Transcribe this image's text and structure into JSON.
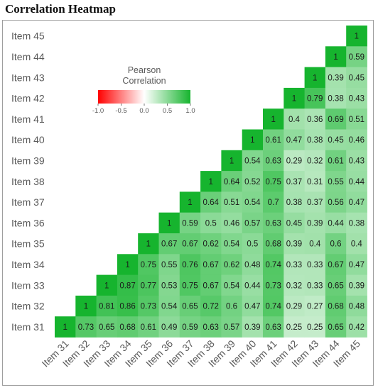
{
  "title": "Correlation Heatmap",
  "chart_data": {
    "type": "heatmap",
    "title": "Correlation Heatmap",
    "items": [
      "Item 31",
      "Item 32",
      "Item 33",
      "Item 34",
      "Item 35",
      "Item 36",
      "Item 37",
      "Item 38",
      "Item 39",
      "Item 40",
      "Item 41",
      "Item 42",
      "Item 43",
      "Item 44",
      "Item 45"
    ],
    "rows": [
      {
        "item": "Item 45",
        "values": [
          1
        ]
      },
      {
        "item": "Item 44",
        "values": [
          1,
          0.59
        ]
      },
      {
        "item": "Item 43",
        "values": [
          1,
          0.39,
          0.45
        ]
      },
      {
        "item": "Item 42",
        "values": [
          1,
          0.79,
          0.38,
          0.43
        ]
      },
      {
        "item": "Item 41",
        "values": [
          1,
          0.4,
          0.36,
          0.69,
          0.51
        ]
      },
      {
        "item": "Item 40",
        "values": [
          1,
          0.61,
          0.47,
          0.38,
          0.45,
          0.46
        ]
      },
      {
        "item": "Item 39",
        "values": [
          1,
          0.54,
          0.63,
          0.29,
          0.32,
          0.61,
          0.43
        ]
      },
      {
        "item": "Item 38",
        "values": [
          1,
          0.64,
          0.52,
          0.75,
          0.37,
          0.31,
          0.55,
          0.44
        ]
      },
      {
        "item": "Item 37",
        "values": [
          1,
          0.64,
          0.51,
          0.54,
          0.7,
          0.38,
          0.37,
          0.56,
          0.47
        ]
      },
      {
        "item": "Item 36",
        "values": [
          1,
          0.59,
          0.5,
          0.46,
          0.57,
          0.63,
          0.45,
          0.39,
          0.44,
          0.38
        ]
      },
      {
        "item": "Item 35",
        "values": [
          1,
          0.67,
          0.67,
          0.62,
          0.54,
          0.5,
          0.68,
          0.39,
          0.4,
          0.6,
          0.4
        ]
      },
      {
        "item": "Item 34",
        "values": [
          1,
          0.75,
          0.55,
          0.76,
          0.67,
          0.62,
          0.48,
          0.74,
          0.33,
          0.33,
          0.67,
          0.47
        ]
      },
      {
        "item": "Item 33",
        "values": [
          1,
          0.87,
          0.77,
          0.53,
          0.75,
          0.67,
          0.54,
          0.44,
          0.73,
          0.32,
          0.33,
          0.65,
          0.39
        ]
      },
      {
        "item": "Item 32",
        "values": [
          1,
          0.81,
          0.86,
          0.73,
          0.54,
          0.65,
          0.72,
          0.6,
          0.47,
          0.74,
          0.29,
          0.27,
          0.68,
          0.48
        ]
      },
      {
        "item": "Item 31",
        "values": [
          1,
          0.73,
          0.65,
          0.68,
          0.61,
          0.49,
          0.59,
          0.63,
          0.57,
          0.39,
          0.63,
          0.25,
          0.25,
          0.65,
          0.42
        ]
      }
    ],
    "legend": {
      "title_line1": "Pearson",
      "title_line2": "Correlation",
      "ticks": [
        "-1.0",
        "-0.5",
        "0.0",
        "0.5",
        "1.0"
      ],
      "range": [
        -1,
        1
      ]
    },
    "colors": {
      "negative": "#ff0000",
      "zero": "#ffffff",
      "positive": "#16b42e"
    }
  }
}
